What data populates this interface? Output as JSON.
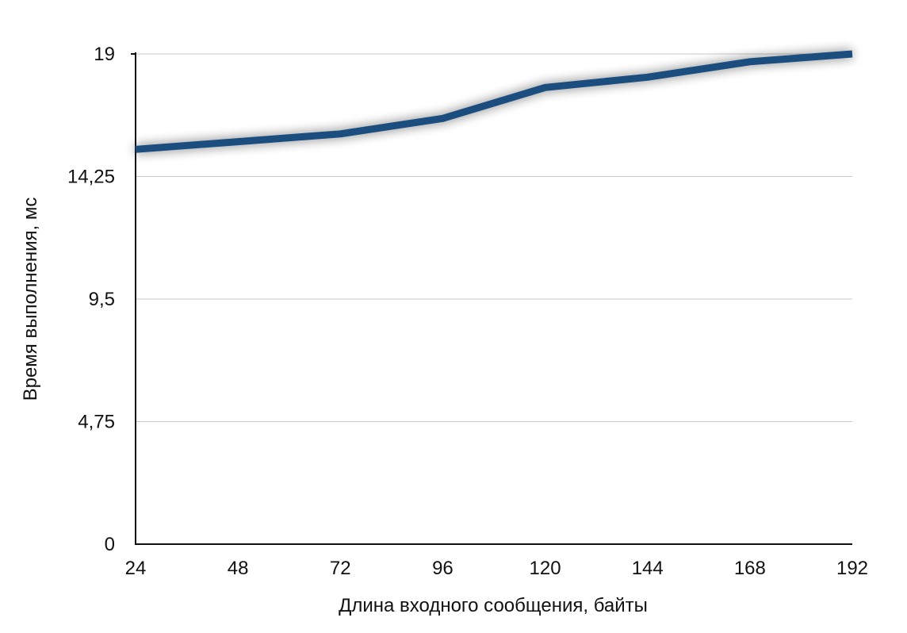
{
  "chart_data": {
    "type": "line",
    "title": "",
    "xlabel": "Длина входного сообщения, байты",
    "ylabel": "Время выполнения, мс",
    "x_tick_labels": [
      "24",
      "48",
      "72",
      "96",
      "120",
      "144",
      "168",
      "192"
    ],
    "y_tick_labels": [
      "0",
      "4,75",
      "9,5",
      "14,25",
      "19"
    ],
    "x": [
      24,
      48,
      72,
      96,
      120,
      144,
      168,
      192
    ],
    "series": [
      {
        "values": [
          15.3,
          15.6,
          15.9,
          16.5,
          17.7,
          18.1,
          18.7,
          19.0
        ],
        "color": "#1f4e7f"
      }
    ],
    "xlim": [
      24,
      192
    ],
    "ylim": [
      0,
      19
    ],
    "y_ticks": [
      0,
      4.75,
      9.5,
      14.25,
      19
    ],
    "grid": true,
    "legend": "none"
  }
}
